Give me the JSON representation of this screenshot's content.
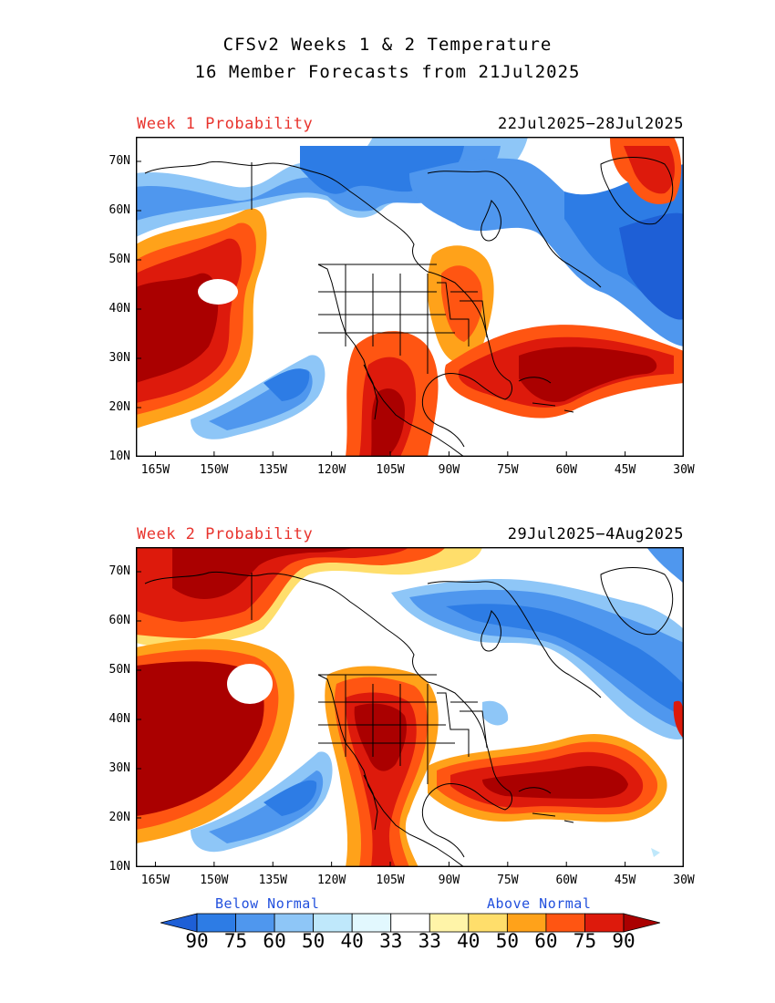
{
  "title": {
    "line1": "CFSv2 Weeks 1 & 2 Temperature",
    "line2": "16 Member Forecasts from 21Jul2025"
  },
  "panels": [
    {
      "week_label": "Week 1 Probability",
      "date_range": "22Jul2025−28Jul2025"
    },
    {
      "week_label": "Week 2 Probability",
      "date_range": "29Jul2025−4Aug2025"
    }
  ],
  "lat_labels": [
    "70N",
    "60N",
    "50N",
    "40N",
    "30N",
    "20N",
    "10N"
  ],
  "lon_labels": [
    "165W",
    "150W",
    "135W",
    "120W",
    "105W",
    "90W",
    "75W",
    "60W",
    "45W",
    "30W"
  ],
  "legend": {
    "below_label": "Below Normal",
    "above_label": "Above Normal",
    "values": [
      "90",
      "75",
      "60",
      "50",
      "40",
      "33",
      "33",
      "40",
      "50",
      "60",
      "75",
      "90"
    ],
    "colors": [
      "#1e5fd6",
      "#2d7ce5",
      "#4f97ee",
      "#8ec6f7",
      "#bfe8fb",
      "#e2f8fe",
      "#ffffff",
      "#fff4a8",
      "#ffde6b",
      "#ffa21a",
      "#ff5512",
      "#dd1a0c",
      "#aa0000"
    ]
  },
  "colors": {
    "week_label": "#e8332d",
    "legend_text": "#2250dd"
  }
}
